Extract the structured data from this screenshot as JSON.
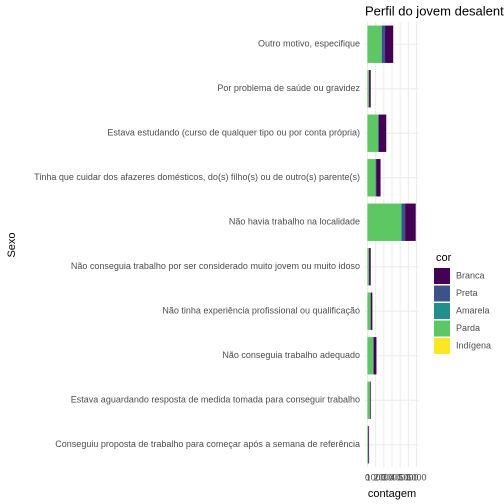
{
  "chart_data": {
    "type": "stacked-bar-horizontal",
    "title": "Perfil do jovem desalentado",
    "x_label": "contagem",
    "y_label": "Sexo",
    "categories": [
      "Outro motivo, especifique",
      "Por problema de saúde ou gravidez",
      "Estava estudando (curso de qualquer tipo ou por conta própria)",
      "Tinha que cuidar dos afazeres domésticos, do(s) filho(s) ou de outro(s) parente(s)",
      "Não havia trabalho na localidade",
      "Não conseguia trabalho por ser considerado muito jovem ou muito idoso",
      "Não tinha experiência profissional ou qualificação",
      "Não conseguia trabalho adequado",
      "Estava aguardando resposta de medida tomada para conseguir trabalho",
      "Conseguiu proposta de trabalho para começar após a semana de referência"
    ],
    "legend_title": "cor",
    "series": [
      {
        "name": "Branca",
        "color": "#440154",
        "values": [
          1000,
          200,
          900,
          500,
          1300,
          200,
          200,
          300,
          100,
          100
        ]
      },
      {
        "name": "Preta",
        "color": "#3b528b",
        "values": [
          400,
          0,
          100,
          100,
          400,
          0,
          0,
          100,
          0,
          0
        ]
      },
      {
        "name": "Amarela",
        "color": "#21908c",
        "values": [
          50,
          0,
          0,
          0,
          100,
          0,
          0,
          0,
          0,
          0
        ]
      },
      {
        "name": "Parda",
        "color": "#5dc863",
        "values": [
          1700,
          200,
          1300,
          1000,
          4100,
          200,
          400,
          700,
          300,
          100
        ]
      },
      {
        "name": "Indígena",
        "color": "#fde725",
        "values": [
          0,
          0,
          0,
          0,
          0,
          0,
          0,
          0,
          0,
          0
        ]
      }
    ],
    "xlim": [
      -300,
      6300
    ],
    "xticks": [
      0,
      1000,
      2000,
      3000,
      4000,
      5000,
      6000
    ],
    "grid": true
  }
}
